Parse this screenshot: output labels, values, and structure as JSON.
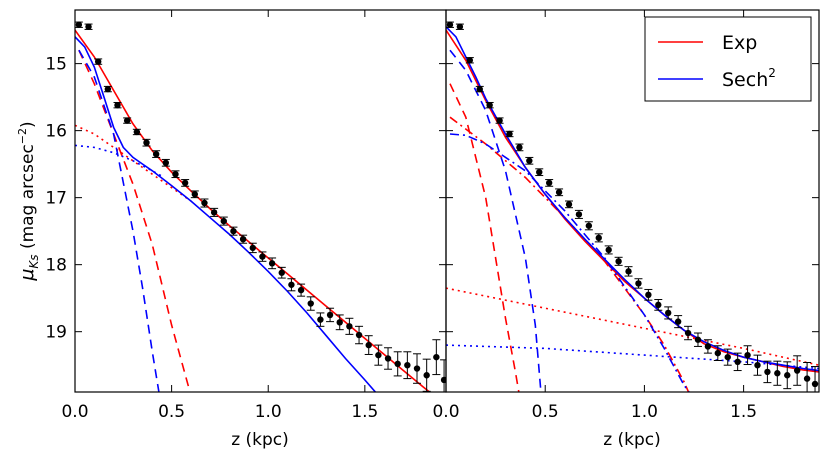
{
  "chart_data": {
    "type": "line",
    "ylabel_symbol": "μ",
    "ylabel_sub": "Ks",
    "ylabel_unit_open": " (mag arcsec",
    "ylabel_unit_exp": "−2",
    "ylabel_unit_close": ")",
    "ylim": [
      19.9,
      14.2
    ],
    "yticks": [
      15,
      16,
      17,
      18,
      19
    ],
    "yticklabels": [
      "15",
      "16",
      "17",
      "18",
      "19"
    ],
    "legend": {
      "placement": "top-right of right panel",
      "entries": [
        {
          "label": "Exp",
          "color": "#ff0000"
        },
        {
          "label": "Sech",
          "sup": "2",
          "color": "#0000ff"
        }
      ]
    },
    "panels": [
      {
        "name": "left",
        "xlabel": "z (kpc)",
        "xlim": [
          0,
          1.92
        ],
        "xticks": [
          0,
          0.5,
          1.0,
          1.5
        ],
        "xticklabels": [
          "0.0",
          "0.5",
          "1.0",
          "1.5"
        ],
        "observed": {
          "z": [
            0.02,
            0.07,
            0.12,
            0.17,
            0.22,
            0.27,
            0.32,
            0.37,
            0.42,
            0.47,
            0.52,
            0.57,
            0.62,
            0.67,
            0.72,
            0.77,
            0.82,
            0.87,
            0.92,
            0.97,
            1.02,
            1.07,
            1.12,
            1.17,
            1.22,
            1.27,
            1.32,
            1.37,
            1.42,
            1.47,
            1.52,
            1.57,
            1.62,
            1.67,
            1.72,
            1.77,
            1.82,
            1.87,
            1.91
          ],
          "mu": [
            14.42,
            14.45,
            14.97,
            15.38,
            15.62,
            15.85,
            16.02,
            16.18,
            16.35,
            16.48,
            16.65,
            16.78,
            16.95,
            17.08,
            17.22,
            17.35,
            17.5,
            17.62,
            17.75,
            17.88,
            17.98,
            18.12,
            18.3,
            18.38,
            18.58,
            18.82,
            18.75,
            18.86,
            18.92,
            19.05,
            19.2,
            19.35,
            19.4,
            19.48,
            19.5,
            19.55,
            19.65,
            19.38,
            19.72
          ],
          "err": [
            0.04,
            0.04,
            0.04,
            0.04,
            0.04,
            0.04,
            0.04,
            0.05,
            0.05,
            0.05,
            0.05,
            0.05,
            0.05,
            0.06,
            0.06,
            0.06,
            0.06,
            0.06,
            0.07,
            0.07,
            0.08,
            0.08,
            0.09,
            0.09,
            0.1,
            0.1,
            0.1,
            0.11,
            0.12,
            0.13,
            0.14,
            0.15,
            0.16,
            0.18,
            0.2,
            0.22,
            0.24,
            0.26,
            0.3
          ]
        },
        "series": [
          {
            "name": "Exp total",
            "color": "#ff0000",
            "style": "solid",
            "x": [
              0,
              0.1,
              0.2,
              0.3,
              0.4,
              0.5,
              0.6,
              0.7,
              0.8,
              0.9,
              1.0,
              1.1,
              1.2,
              1.3,
              1.4,
              1.5,
              1.6,
              1.7,
              1.8,
              1.86
            ],
            "y": [
              14.5,
              14.9,
              15.4,
              15.9,
              16.3,
              16.62,
              16.9,
              17.17,
              17.42,
              17.66,
              17.9,
              18.14,
              18.38,
              18.62,
              18.86,
              19.1,
              19.34,
              19.58,
              19.82,
              19.96
            ]
          },
          {
            "name": "Exp thin",
            "color": "#ff0000",
            "style": "dashed",
            "x": [
              0.02,
              0.1,
              0.2,
              0.3,
              0.4,
              0.5,
              0.6
            ],
            "y": [
              14.8,
              15.3,
              16.05,
              16.8,
              17.7,
              18.9,
              19.95
            ]
          },
          {
            "name": "Exp thick",
            "color": "#ff0000",
            "style": "dotted",
            "x": [
              0,
              0.1,
              0.2,
              0.3,
              0.4,
              0.5,
              0.6
            ],
            "y": [
              15.92,
              16.05,
              16.25,
              16.45,
              16.65,
              16.85,
              17.05
            ]
          },
          {
            "name": "Sech2 total",
            "color": "#0000ff",
            "style": "solid",
            "x": [
              0,
              0.05,
              0.1,
              0.15,
              0.2,
              0.25,
              0.3,
              0.35,
              0.4,
              0.5,
              0.6,
              0.7,
              0.8,
              0.9,
              1.0,
              1.1,
              1.2,
              1.3,
              1.4,
              1.5,
              1.6,
              1.65
            ],
            "y": [
              14.6,
              14.75,
              15.05,
              15.5,
              15.95,
              16.25,
              16.4,
              16.5,
              16.6,
              16.82,
              17.05,
              17.3,
              17.55,
              17.82,
              18.1,
              18.4,
              18.72,
              19.06,
              19.4,
              19.72,
              20.05,
              20.2
            ]
          },
          {
            "name": "Sech2 thin",
            "color": "#0000ff",
            "style": "dashed",
            "x": [
              0.02,
              0.1,
              0.2,
              0.3,
              0.35,
              0.4,
              0.44
            ],
            "y": [
              14.8,
              15.2,
              16.05,
              17.5,
              18.35,
              19.3,
              20
            ]
          },
          {
            "name": "Sech2 thick",
            "color": "#0000ff",
            "style": "dotted",
            "x": [
              0,
              0.1,
              0.2,
              0.3,
              0.4,
              0.45
            ],
            "y": [
              16.22,
              16.25,
              16.33,
              16.45,
              16.6,
              16.68
            ]
          }
        ]
      },
      {
        "name": "right",
        "xlabel": "z (kpc)",
        "xlim": [
          0,
          1.88
        ],
        "xticks": [
          0,
          0.5,
          1.0,
          1.5
        ],
        "xticklabels": [
          "0.0",
          "0.5",
          "1.0",
          "1.5"
        ],
        "observed": {
          "z": [
            0.02,
            0.07,
            0.12,
            0.17,
            0.22,
            0.27,
            0.32,
            0.37,
            0.42,
            0.47,
            0.52,
            0.57,
            0.62,
            0.67,
            0.72,
            0.77,
            0.82,
            0.87,
            0.92,
            0.97,
            1.02,
            1.07,
            1.12,
            1.17,
            1.22,
            1.27,
            1.32,
            1.37,
            1.42,
            1.47,
            1.52,
            1.57,
            1.62,
            1.67,
            1.72,
            1.77,
            1.82,
            1.86
          ],
          "mu": [
            14.42,
            14.45,
            14.95,
            15.38,
            15.62,
            15.85,
            16.05,
            16.25,
            16.45,
            16.62,
            16.78,
            16.92,
            17.1,
            17.25,
            17.42,
            17.6,
            17.78,
            17.95,
            18.1,
            18.28,
            18.45,
            18.6,
            18.72,
            18.85,
            19.02,
            19.12,
            19.22,
            19.32,
            19.38,
            19.45,
            19.35,
            19.5,
            19.6,
            19.62,
            19.65,
            19.58,
            19.7,
            19.78
          ],
          "err": [
            0.04,
            0.04,
            0.04,
            0.04,
            0.04,
            0.04,
            0.04,
            0.05,
            0.05,
            0.05,
            0.05,
            0.05,
            0.05,
            0.06,
            0.06,
            0.06,
            0.06,
            0.06,
            0.07,
            0.07,
            0.08,
            0.08,
            0.09,
            0.09,
            0.1,
            0.1,
            0.1,
            0.11,
            0.12,
            0.13,
            0.14,
            0.15,
            0.16,
            0.18,
            0.2,
            0.22,
            0.24,
            0.26
          ]
        },
        "series": [
          {
            "name": "Exp total",
            "color": "#ff0000",
            "style": "solid",
            "x": [
              0,
              0.1,
              0.2,
              0.3,
              0.4,
              0.5,
              0.6,
              0.7,
              0.8,
              0.9,
              1.0,
              1.1,
              1.2,
              1.3,
              1.4,
              1.5,
              1.6,
              1.7,
              1.8,
              1.88
            ],
            "y": [
              14.5,
              14.95,
              15.55,
              16.1,
              16.55,
              16.95,
              17.32,
              17.65,
              17.95,
              18.25,
              18.5,
              18.75,
              18.98,
              19.18,
              19.3,
              19.38,
              19.45,
              19.52,
              19.57,
              19.6
            ]
          },
          {
            "name": "Exp thin",
            "color": "#ff0000",
            "style": "dashed",
            "x": [
              0.02,
              0.1,
              0.2,
              0.3,
              0.35,
              0.37
            ],
            "y": [
              15.3,
              15.8,
              17.0,
              18.8,
              19.6,
              19.95
            ]
          },
          {
            "name": "Exp thick",
            "color": "#ff0000",
            "style": "dash-dot",
            "x": [
              0.02,
              0.2,
              0.4,
              0.6,
              0.8,
              1.0,
              1.1,
              1.2,
              1.23
            ],
            "y": [
              15.8,
              16.2,
              16.7,
              17.3,
              17.95,
              18.75,
              19.2,
              19.75,
              19.95
            ]
          },
          {
            "name": "Exp halo",
            "color": "#ff0000",
            "style": "dotted",
            "x": [
              0,
              0.5,
              1.0,
              1.5,
              1.88
            ],
            "y": [
              18.35,
              18.65,
              18.95,
              19.25,
              19.5
            ]
          },
          {
            "name": "Sech2 total",
            "color": "#0000ff",
            "style": "solid",
            "x": [
              0,
              0.05,
              0.1,
              0.15,
              0.2,
              0.3,
              0.4,
              0.5,
              0.6,
              0.7,
              0.8,
              0.9,
              1.0,
              1.1,
              1.2,
              1.3,
              1.4,
              1.5,
              1.6,
              1.7,
              1.8,
              1.88
            ],
            "y": [
              14.45,
              14.6,
              14.9,
              15.2,
              15.52,
              16.05,
              16.55,
              16.95,
              17.3,
              17.62,
              17.92,
              18.22,
              18.5,
              18.75,
              18.98,
              19.15,
              19.28,
              19.38,
              19.45,
              19.5,
              19.55,
              19.58
            ]
          },
          {
            "name": "Sech2 thin",
            "color": "#0000ff",
            "style": "dashed",
            "x": [
              0.02,
              0.1,
              0.2,
              0.3,
              0.4,
              0.45,
              0.48
            ],
            "y": [
              14.8,
              15.1,
              15.7,
              16.6,
              17.9,
              18.9,
              19.95
            ]
          },
          {
            "name": "Sech2 thick",
            "color": "#0000ff",
            "style": "dash-dot",
            "x": [
              0.02,
              0.1,
              0.2,
              0.4,
              0.6,
              0.8,
              1.0,
              1.1,
              1.2,
              1.25
            ],
            "y": [
              16.05,
              16.07,
              16.2,
              16.6,
              17.2,
              17.9,
              18.75,
              19.25,
              19.8,
              20
            ]
          },
          {
            "name": "Sech2 halo",
            "color": "#0000ff",
            "style": "dotted",
            "x": [
              0,
              0.5,
              1.0,
              1.5,
              1.88
            ],
            "y": [
              19.2,
              19.25,
              19.35,
              19.45,
              19.55
            ]
          }
        ]
      }
    ]
  }
}
